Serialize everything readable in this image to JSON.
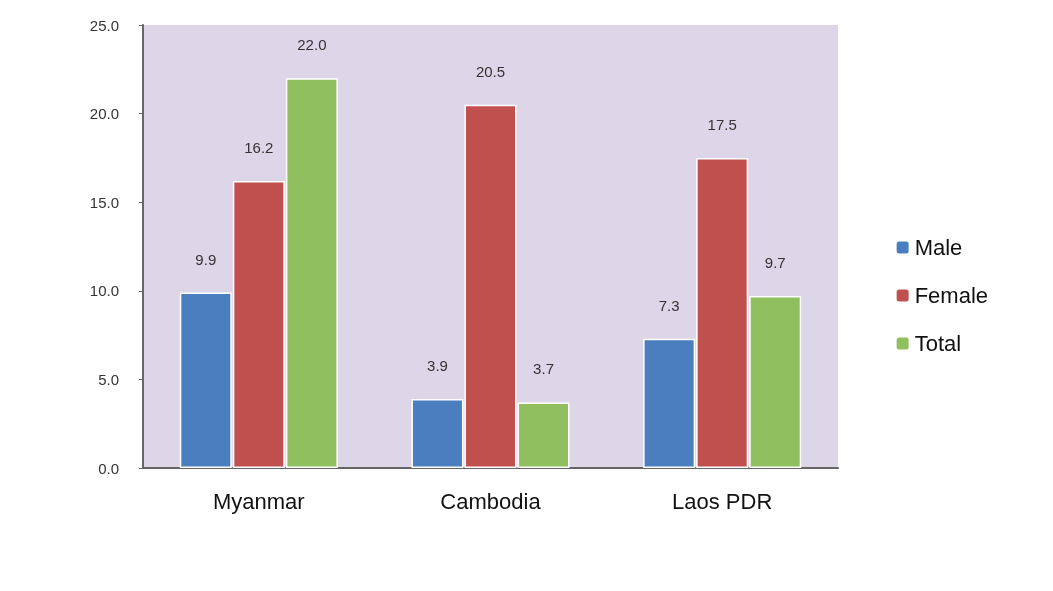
{
  "chart_data": {
    "type": "bar",
    "categories": [
      "Myanmar",
      "Cambodia",
      "Laos PDR"
    ],
    "series": [
      {
        "name": "Male",
        "color": "#4a7ebf",
        "values": [
          9.9,
          3.9,
          7.3
        ],
        "value_labels": [
          "9.9",
          "3.9",
          "7.3"
        ]
      },
      {
        "name": "Female",
        "color": "#c0504d",
        "values": [
          16.2,
          20.5,
          17.5
        ],
        "value_labels": [
          "16.2",
          "20.5",
          "17.5"
        ]
      },
      {
        "name": "Total",
        "color": "#8fbf5f",
        "values": [
          22.0,
          3.7,
          9.7
        ],
        "value_labels": [
          "22.0",
          "3.7",
          "9.7"
        ]
      }
    ],
    "ylim": [
      0,
      25
    ],
    "yticks": [
      {
        "value": 0,
        "label": "0.0"
      },
      {
        "value": 5,
        "label": "5.0"
      },
      {
        "value": 10,
        "label": "10.0"
      },
      {
        "value": 15,
        "label": "15.0"
      },
      {
        "value": 20,
        "label": "20.0"
      },
      {
        "value": 25,
        "label": "25.0"
      }
    ],
    "grid": false,
    "legend": "right"
  }
}
